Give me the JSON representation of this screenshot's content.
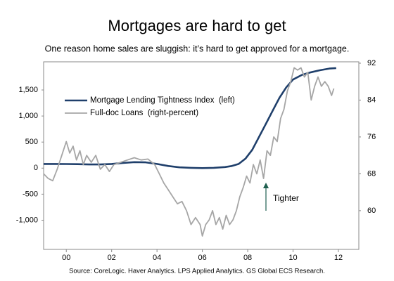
{
  "chart_data": {
    "type": "line",
    "title": "Mortgages are hard to get",
    "subtitle": "One reason home sales are sluggish: it’s hard to get approved for a mortgage.",
    "source": "Source: CoreLogic. Haver Analytics. LPS Applied Analytics. GS Global ECS Research.",
    "annotations": [
      {
        "text": "Tighter"
      }
    ],
    "legend": "upper left",
    "xlim": [
      1999,
      2012.9
    ],
    "xticks": [
      {
        "value": 2000,
        "label": "00"
      },
      {
        "value": 2002,
        "label": "02"
      },
      {
        "value": 2004,
        "label": "04"
      },
      {
        "value": 2006,
        "label": "06"
      },
      {
        "value": 2008,
        "label": "08"
      },
      {
        "value": 2010,
        "label": "10"
      },
      {
        "value": 2012,
        "label": "12"
      }
    ],
    "ylim": [
      -1560,
      2040
    ],
    "yticks": [
      {
        "value": -1000,
        "label": "-1,000"
      },
      -500,
      0,
      500,
      {
        "value": 1000,
        "label": "1,000"
      },
      {
        "value": 1500,
        "label": "1,500"
      }
    ],
    "y2lim": [
      51.6,
      92.3
    ],
    "y2ticks": [
      60,
      68,
      76,
      84,
      92
    ],
    "series": [
      {
        "name": "Mortgage Lending Tightness Index  (left)",
        "color": "#1f3f6b",
        "axis": "y",
        "x": [
          1999,
          1999.5,
          2000,
          2000.5,
          2001,
          2001.5,
          2002,
          2002.5,
          2003,
          2003.5,
          2004,
          2004.5,
          2005,
          2005.5,
          2006,
          2006.5,
          2007,
          2007.3,
          2007.6,
          2007.9,
          2008.2,
          2008.5,
          2008.8,
          2009.1,
          2009.4,
          2009.7,
          2010,
          2010.4,
          2010.8,
          2011.2,
          2011.6,
          2011.9
        ],
        "values": [
          80,
          80,
          78,
          75,
          70,
          70,
          80,
          100,
          115,
          110,
          80,
          40,
          15,
          5,
          0,
          5,
          20,
          40,
          80,
          180,
          350,
          600,
          850,
          1100,
          1350,
          1550,
          1700,
          1790,
          1840,
          1880,
          1910,
          1920
        ]
      },
      {
        "name": "Full-doc Loans  (right-percent)",
        "color": "#a6a6a6",
        "axis": "y2",
        "x": [
          1999.0,
          1999.2,
          1999.4,
          1999.6,
          1999.8,
          2000.0,
          2000.15,
          2000.3,
          2000.45,
          2000.6,
          2000.75,
          2000.9,
          2001.1,
          2001.3,
          2001.5,
          2001.7,
          2001.9,
          2002.1,
          2002.4,
          2002.7,
          2003.0,
          2003.3,
          2003.6,
          2003.9,
          2004.1,
          2004.3,
          2004.5,
          2004.7,
          2004.9,
          2005.1,
          2005.3,
          2005.5,
          2005.7,
          2005.9,
          2006.0,
          2006.15,
          2006.3,
          2006.45,
          2006.6,
          2006.75,
          2006.9,
          2007.05,
          2007.2,
          2007.35,
          2007.5,
          2007.65,
          2007.8,
          2007.95,
          2008.1,
          2008.25,
          2008.4,
          2008.55,
          2008.7,
          2008.85,
          2009.0,
          2009.15,
          2009.3,
          2009.45,
          2009.6,
          2009.75,
          2009.9,
          2010.05,
          2010.2,
          2010.35,
          2010.5,
          2010.65,
          2010.8,
          2010.95,
          2011.1,
          2011.25,
          2011.4,
          2011.55,
          2011.7,
          2011.8
        ],
        "values": [
          68,
          67,
          66.5,
          69,
          72,
          75,
          72.5,
          74,
          71,
          73,
          70,
          72,
          70.5,
          72,
          69,
          70,
          68.5,
          70,
          70.5,
          71,
          71.5,
          71,
          71.2,
          70,
          68,
          66,
          64.5,
          63,
          61.5,
          62,
          60,
          57,
          58.5,
          57,
          54.5,
          57,
          58,
          60,
          57,
          58.5,
          56,
          59,
          57,
          58,
          60,
          63,
          65,
          67.5,
          66,
          70,
          68,
          71,
          67,
          73,
          72,
          76,
          75,
          80,
          82,
          86,
          88,
          91,
          90.5,
          91,
          89,
          90,
          84,
          87,
          89,
          87,
          88,
          87,
          85,
          86.5
        ]
      }
    ]
  }
}
